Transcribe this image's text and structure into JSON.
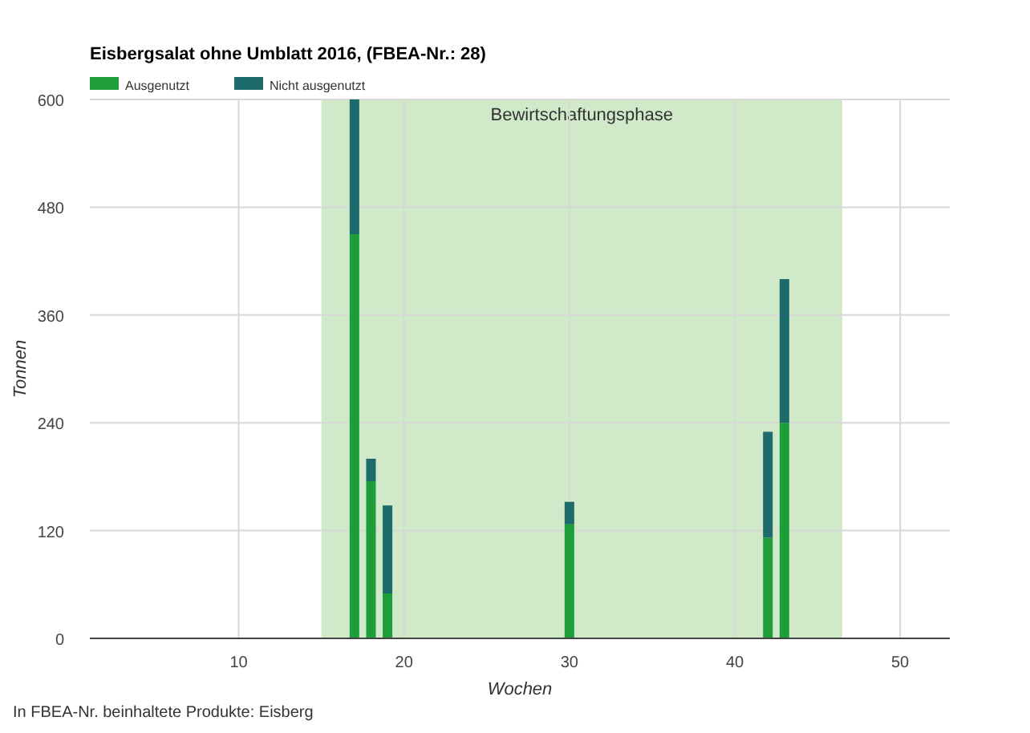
{
  "chart_data": {
    "type": "bar",
    "stacked": true,
    "title": "Eisbergsalat ohne Umblatt 2016, (FBEA-Nr.: 28)",
    "xlabel": "Wochen",
    "ylabel": "Tonnen",
    "x": [
      17,
      18,
      19,
      30,
      42,
      43
    ],
    "series": [
      {
        "name": "Ausgenutzt",
        "color": "#1e9e3a",
        "values": [
          450,
          175,
          50,
          127,
          112,
          240
        ]
      },
      {
        "name": "Nicht ausgenutzt",
        "color": "#1d6b6b",
        "values": [
          150,
          25,
          98,
          25,
          118,
          160
        ]
      }
    ],
    "xlim": [
      1,
      53
    ],
    "xticks": [
      10,
      20,
      30,
      40,
      50
    ],
    "ylim": [
      0,
      600
    ],
    "yticks": [
      0,
      120,
      240,
      360,
      480,
      600
    ],
    "bands": [
      {
        "axis": "x",
        "from": 15,
        "to": 46.5,
        "label": "Bewirtschaftungsphase",
        "color": "#cfe9c9"
      }
    ],
    "grid": true,
    "legend": "top left",
    "annotations": [
      "In FBEA-Nr. beinhaltete Produkte: Eisberg"
    ]
  }
}
